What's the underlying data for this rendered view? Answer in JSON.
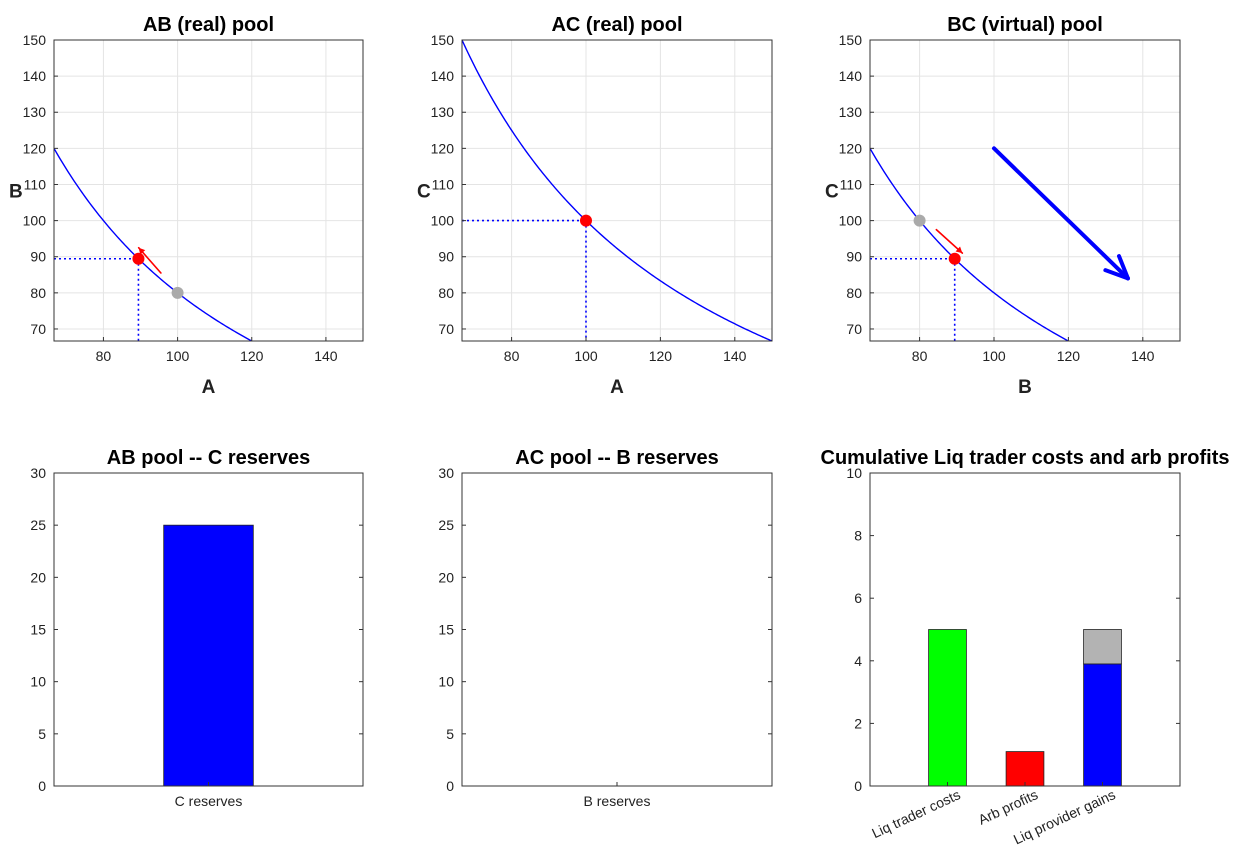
{
  "figure_suptitle": "",
  "chart_data": [
    {
      "id": "ab",
      "type": "line",
      "title": "AB (real) pool",
      "xlabel": "A",
      "ylabel": "B",
      "xlim": [
        66.67,
        150
      ],
      "ylim": [
        66.67,
        150
      ],
      "xticks": [
        80,
        100,
        120,
        140
      ],
      "yticks": [
        70,
        80,
        90,
        100,
        110,
        120,
        130,
        140,
        150
      ],
      "grid": true,
      "curve": {
        "invariant_k": 8000,
        "color": "#0000ff"
      },
      "points": [
        {
          "name": "current",
          "x": 89.44,
          "y": 89.44,
          "color": "#ff0000"
        },
        {
          "name": "previous",
          "x": 100,
          "y": 80,
          "color": "#aaaaaa"
        }
      ],
      "dotted_guides": {
        "x": 89.44,
        "y": 89.44
      },
      "arrows": [
        {
          "from": [
            95.5,
            85.5
          ],
          "to": [
            89.5,
            92.5
          ],
          "color": "#ff0000",
          "weight": "thin"
        }
      ]
    },
    {
      "id": "ac",
      "type": "line",
      "title": "AC (real) pool",
      "xlabel": "A",
      "ylabel": "C",
      "xlim": [
        66.67,
        150
      ],
      "ylim": [
        66.67,
        150
      ],
      "xticks": [
        80,
        100,
        120,
        140
      ],
      "yticks": [
        70,
        80,
        90,
        100,
        110,
        120,
        130,
        140,
        150
      ],
      "grid": true,
      "curve": {
        "invariant_k": 10000,
        "color": "#0000ff"
      },
      "points": [
        {
          "name": "current",
          "x": 100,
          "y": 100,
          "color": "#ff0000"
        }
      ],
      "dotted_guides": {
        "x": 100,
        "y": 100
      },
      "arrows": []
    },
    {
      "id": "bc",
      "type": "line",
      "title": "BC (virtual) pool",
      "xlabel": "B",
      "ylabel": "C",
      "xlim": [
        66.67,
        150
      ],
      "ylim": [
        66.67,
        150
      ],
      "xticks": [
        80,
        100,
        120,
        140
      ],
      "yticks": [
        70,
        80,
        90,
        100,
        110,
        120,
        130,
        140,
        150
      ],
      "grid": true,
      "curve": {
        "invariant_k": 8000,
        "color": "#0000ff"
      },
      "points": [
        {
          "name": "current",
          "x": 89.44,
          "y": 89.44,
          "color": "#ff0000"
        },
        {
          "name": "previous",
          "x": 80,
          "y": 100,
          "color": "#aaaaaa"
        }
      ],
      "dotted_guides": {
        "x": 89.44,
        "y": 89.44
      },
      "arrows": [
        {
          "from": [
            84.5,
            97.5
          ],
          "to": [
            91.5,
            91
          ],
          "color": "#ff0000",
          "weight": "thin"
        },
        {
          "from": [
            100,
            120
          ],
          "to": [
            136,
            84
          ],
          "color": "#0000ff",
          "weight": "thick"
        }
      ]
    },
    {
      "id": "abres",
      "type": "bar",
      "title": "AB pool -- C reserves",
      "categories": [
        "C reserves"
      ],
      "values": [
        25
      ],
      "colors": [
        "#0000ff"
      ],
      "ylim": [
        0,
        30
      ],
      "yticks": [
        0,
        5,
        10,
        15,
        20,
        25,
        30
      ],
      "grid": false
    },
    {
      "id": "acres",
      "type": "bar",
      "title": "AC pool -- B reserves",
      "categories": [
        "B reserves"
      ],
      "values": [
        0
      ],
      "colors": [
        "#0000ff"
      ],
      "ylim": [
        0,
        30
      ],
      "yticks": [
        0,
        5,
        10,
        15,
        20,
        25,
        30
      ],
      "grid": false
    },
    {
      "id": "cum",
      "type": "bar",
      "title": "Cumulative Liq trader costs and arb profits",
      "categories": [
        "Liq trader costs",
        "Arb profits",
        "Liq provider gains"
      ],
      "stacked": true,
      "series": [
        {
          "values": [
            5,
            1.1,
            3.9
          ],
          "colors": [
            "#00ff00",
            "#ff0000",
            "#0000ff"
          ]
        },
        {
          "values": [
            0,
            0,
            1.1
          ],
          "colors": [
            "#00ff00",
            "#ff0000",
            "#b3b3b3"
          ]
        }
      ],
      "ylim": [
        0,
        10
      ],
      "yticks": [
        0,
        2,
        4,
        6,
        8,
        10
      ],
      "grid": false
    }
  ]
}
